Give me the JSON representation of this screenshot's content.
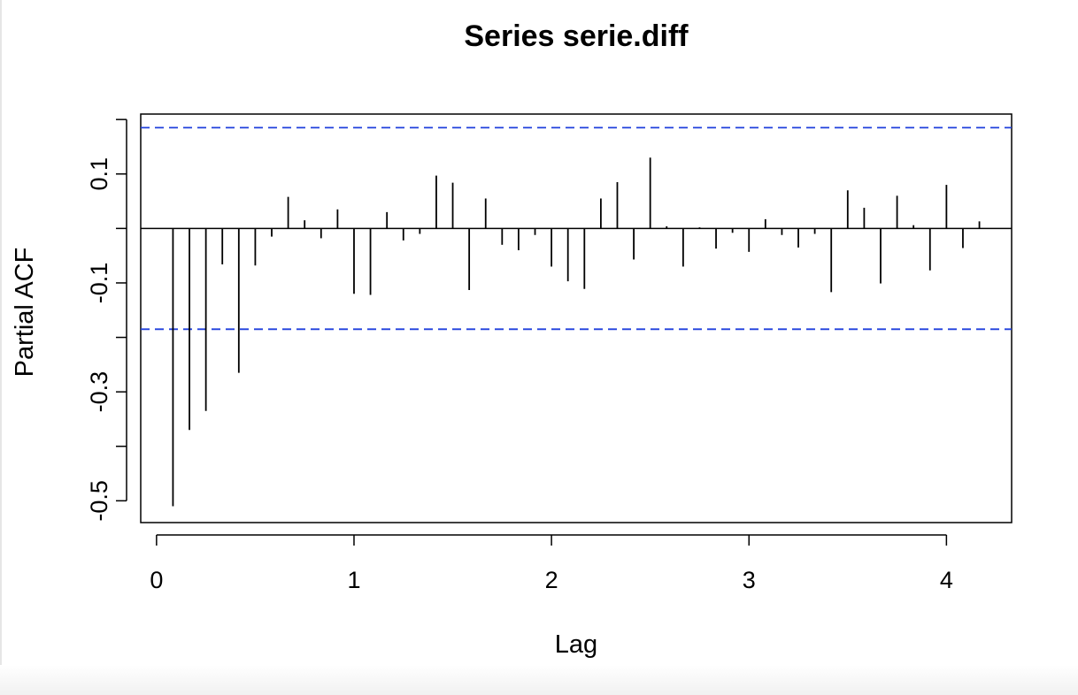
{
  "chart_data": {
    "type": "bar",
    "title": "Series  serie.diff",
    "xlabel": "Lag",
    "ylabel": "Partial ACF",
    "xlim": [
      -0.08,
      4.33
    ],
    "ylim": [
      -0.54,
      0.21
    ],
    "xticks": [
      0,
      1,
      2,
      3,
      4
    ],
    "xtick_labels": [
      "0",
      "1",
      "2",
      "3",
      "4"
    ],
    "yticks": [
      -0.5,
      -0.4,
      -0.3,
      -0.2,
      -0.1,
      0.0,
      0.1,
      0.2
    ],
    "ytick_labels": [
      "-0.5",
      "",
      "-0.3",
      "",
      "-0.1",
      "",
      "0.1",
      ""
    ],
    "confidence_limits": [
      0.185,
      -0.185
    ],
    "confidence_color": "#1f3fdc",
    "bar_color": "#000000",
    "lags": [
      0.0833,
      0.1667,
      0.25,
      0.3333,
      0.4167,
      0.5,
      0.5833,
      0.6667,
      0.75,
      0.8333,
      0.9167,
      1.0,
      1.0833,
      1.1667,
      1.25,
      1.3333,
      1.4167,
      1.5,
      1.5833,
      1.6667,
      1.75,
      1.8333,
      1.9167,
      2.0,
      2.0833,
      2.1667,
      2.25,
      2.3333,
      2.4167,
      2.5,
      2.5833,
      2.6667,
      2.75,
      2.8333,
      2.9167,
      3.0,
      3.0833,
      3.1667,
      3.25,
      3.3333,
      3.4167,
      3.5,
      3.5833,
      3.6667,
      3.75,
      3.8333,
      3.9167,
      4.0,
      4.0833,
      4.1667
    ],
    "values": [
      -0.51,
      -0.37,
      -0.335,
      -0.066,
      -0.265,
      -0.068,
      -0.015,
      0.058,
      0.015,
      -0.018,
      0.035,
      -0.12,
      -0.122,
      0.03,
      -0.022,
      -0.01,
      0.097,
      0.084,
      -0.113,
      0.055,
      -0.03,
      -0.04,
      -0.012,
      -0.07,
      -0.097,
      -0.111,
      0.055,
      0.085,
      -0.057,
      0.13,
      0.004,
      -0.07,
      0.002,
      -0.037,
      -0.008,
      -0.043,
      0.017,
      -0.012,
      -0.035,
      -0.01,
      -0.117,
      0.07,
      0.038,
      -0.101,
      0.06,
      0.006,
      -0.077,
      0.08,
      -0.036,
      0.013
    ]
  }
}
